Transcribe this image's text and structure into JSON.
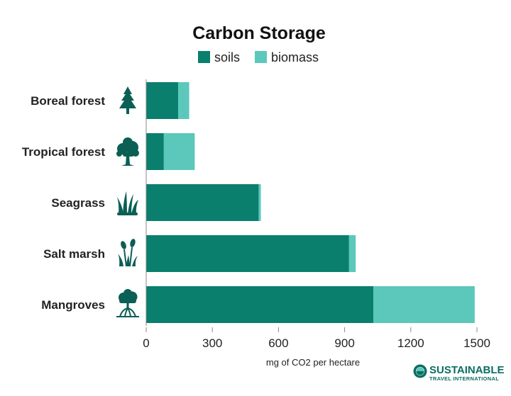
{
  "chart_data": {
    "type": "bar",
    "orientation": "horizontal",
    "stacked": true,
    "title": "Carbon Storage",
    "xlabel": "mg of CO2 per hectare",
    "ylabel": "",
    "categories": [
      "Boreal forest",
      "Tropical forest",
      "Seagrass",
      "Salt marsh",
      "Mangroves"
    ],
    "category_icons": [
      "pine-tree-icon",
      "broadleaf-tree-icon",
      "seagrass-icon",
      "cattail-icon",
      "mangrove-icon"
    ],
    "series": [
      {
        "name": "soils",
        "color": "#0a7f6d",
        "values": [
          145,
          80,
          510,
          920,
          1030
        ]
      },
      {
        "name": "biomass",
        "color": "#5bc8bb",
        "values": [
          50,
          140,
          10,
          30,
          460
        ]
      }
    ],
    "xlim": [
      0,
      1500
    ],
    "xticks": [
      0,
      300,
      600,
      900,
      1200,
      1500
    ],
    "grid": false,
    "legend_position": "top-center"
  },
  "branding": {
    "name": "SUSTAINABLE",
    "subtitle": "TRAVEL INTERNATIONAL",
    "logo_icon": "globe-logo-icon"
  }
}
